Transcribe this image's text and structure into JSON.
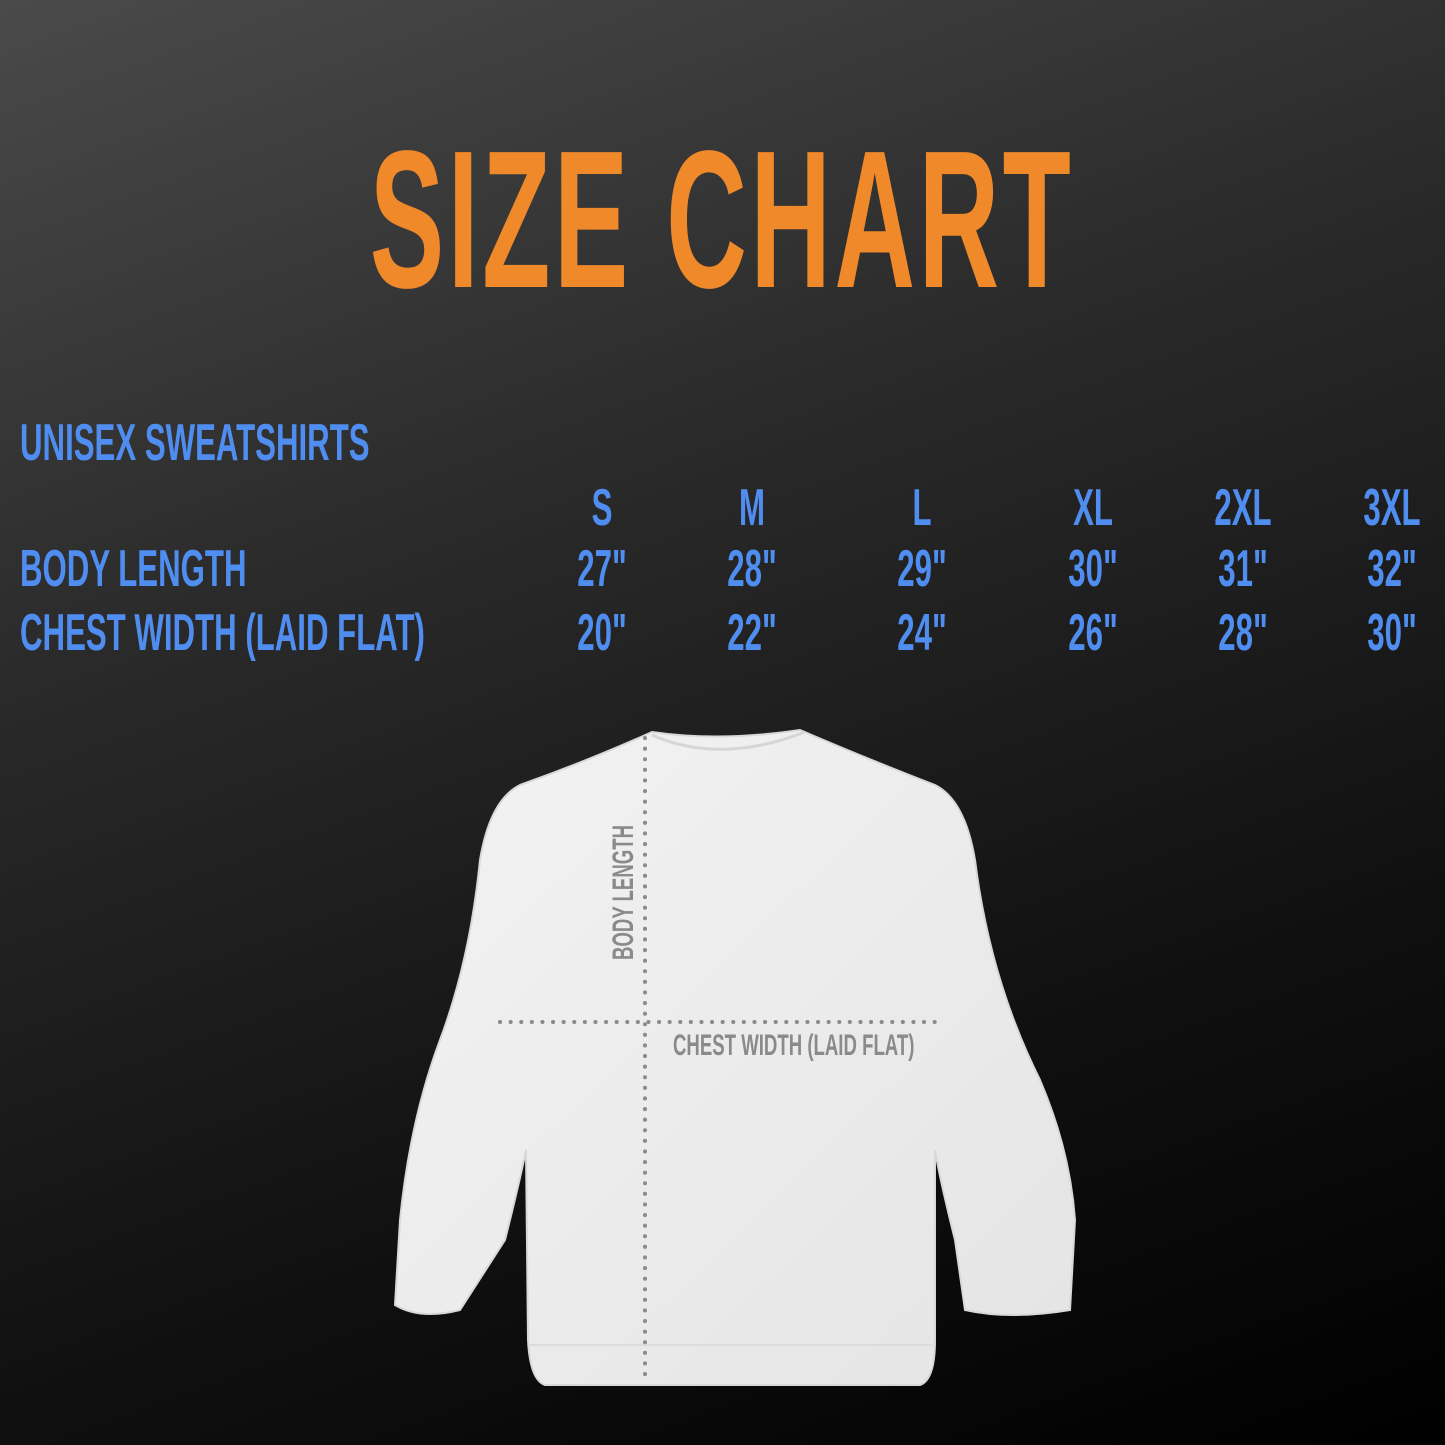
{
  "title": "SIZE CHART",
  "colors": {
    "accent": "#f0892a",
    "label": "#4f8ef0",
    "diagram_label": "#8a8a8a"
  },
  "table": {
    "heading": "UNISEX SWEATSHIRTS",
    "sizes": [
      "S",
      "M",
      "L",
      "XL",
      "2XL",
      "3XL"
    ],
    "rows": [
      {
        "label": "BODY LENGTH",
        "values": [
          "27\"",
          "28\"",
          "29\"",
          "30\"",
          "31\"",
          "32\""
        ]
      },
      {
        "label": "CHEST WIDTH (LAID FLAT)",
        "values": [
          "20\"",
          "22\"",
          "24\"",
          "26\"",
          "28\"",
          "30\""
        ]
      }
    ]
  },
  "diagram": {
    "vertical_label": "BODY LENGTH",
    "horizontal_label": "CHEST WIDTH (LAID FLAT)"
  }
}
